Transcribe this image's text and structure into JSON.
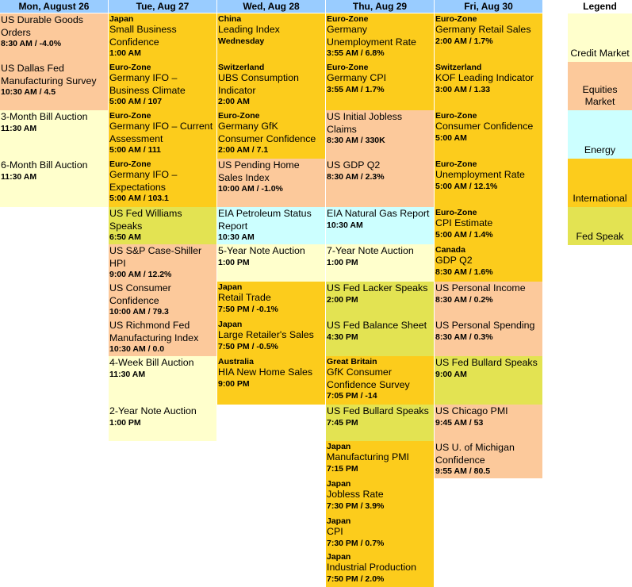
{
  "headers": {
    "mon": "Mon, August 26",
    "tue": "Tue, Aug 27",
    "wed": "Wed, Aug 28",
    "thu": "Thu, Aug 29",
    "fri": "Fri, Aug 30"
  },
  "legend": {
    "title": "Legend",
    "items": [
      {
        "label": "Credit Market",
        "color": "#ffffcc"
      },
      {
        "label": "Equities Market",
        "color": "#fcc99b"
      },
      {
        "label": "Energy",
        "color": "#ccffff"
      },
      {
        "label": "International",
        "color": "#fccc1c"
      },
      {
        "label": "Fed Speak",
        "color": "#e3e352"
      }
    ]
  },
  "mon": [
    {
      "region": "",
      "title": "US Durable Goods Orders",
      "detail": "8:30 AM / -4.0%",
      "category": "Equities Market"
    },
    {
      "region": "",
      "title": "US Dallas Fed Manufacturing Survey",
      "detail": "10:30 AM / 4.5",
      "category": "Equities Market"
    },
    {
      "region": "",
      "title": "3-Month Bill Auction",
      "detail": "11:30 AM",
      "category": "Credit Market"
    },
    {
      "region": "",
      "title": "6-Month Bill Auction",
      "detail": "11:30 AM",
      "category": "Credit Market"
    }
  ],
  "tue": [
    {
      "region": "Japan",
      "title": "Small Business Confidence",
      "detail": "1:00 AM",
      "category": "International"
    },
    {
      "region": "Euro-Zone",
      "title": "Germany IFO – Business Climate",
      "detail": "5:00 AM / 107",
      "category": "International"
    },
    {
      "region": "Euro-Zone",
      "title": "Germany IFO – Current Assessment",
      "detail": "5:00 AM / 111",
      "category": "International"
    },
    {
      "region": "Euro-Zone",
      "title": "Germany IFO – Expectations",
      "detail": "5:00 AM / 103.1",
      "category": "International"
    },
    {
      "region": "",
      "title": "US Fed Williams Speaks",
      "detail": "6:50 AM",
      "category": "Fed Speak"
    },
    {
      "region": "",
      "title": "US S&P Case-Shiller HPI",
      "detail": "9:00 AM / 12.2%",
      "category": "Equities Market"
    },
    {
      "region": "",
      "title": "US Consumer Confidence",
      "detail": "10:00 AM / 79.3",
      "category": "Equities Market"
    },
    {
      "region": "",
      "title": "US Richmond Fed Manufacturing Index",
      "detail": "10:30 AM / 0.0",
      "category": "Equities Market"
    },
    {
      "region": "",
      "title": "4-Week Bill Auction",
      "detail": "11:30 AM",
      "category": "Credit Market"
    },
    {
      "region": "",
      "title": "2-Year Note Auction",
      "detail": "1:00 PM",
      "category": "Credit Market"
    }
  ],
  "wed": [
    {
      "region": "China",
      "title": "Leading Index",
      "detail": "Wednesday",
      "category": "International"
    },
    {
      "region": "Switzerland",
      "title": "UBS Consumption Indicator",
      "detail": "2:00 AM",
      "category": "International"
    },
    {
      "region": "Euro-Zone",
      "title": "Germany GfK Consumer Confidence",
      "detail": "2:00 AM / 7.1",
      "category": "International"
    },
    {
      "region": "",
      "title": "US Pending Home Sales Index",
      "detail": "10:00 AM / -1.0%",
      "category": "Equities Market"
    },
    {
      "region": "",
      "title": "EIA Petroleum Status Report",
      "detail": "10:30 AM",
      "category": "Energy"
    },
    {
      "region": "",
      "title": "5-Year Note Auction",
      "detail": "1:00 PM",
      "category": "Credit Market"
    },
    {
      "region": "Japan",
      "title": "Retail Trade",
      "detail": "7:50 PM / -0.1%",
      "category": "International"
    },
    {
      "region": "Japan",
      "title": "Large Retailer's Sales",
      "detail": "7:50 PM / -0.5%",
      "category": "International"
    },
    {
      "region": "Australia",
      "title": "HIA New Home Sales",
      "detail": "9:00 PM",
      "category": "International"
    }
  ],
  "thu": [
    {
      "region": "Euro-Zone",
      "title": "Germany Unemployment Rate",
      "detail": "3:55 AM / 6.8%",
      "category": "International"
    },
    {
      "region": "Euro-Zone",
      "title": "Germany CPI",
      "detail": "3:55 AM / 1.7%",
      "category": "International"
    },
    {
      "region": "",
      "title": "US Initial Jobless Claims",
      "detail": "8:30 AM / 330K",
      "category": "Equities Market"
    },
    {
      "region": "",
      "title": "US GDP Q2",
      "detail": "8:30 AM / 2.3%",
      "category": "Equities Market"
    },
    {
      "region": "",
      "title": "EIA Natural Gas Report",
      "detail": "10:30 AM",
      "category": "Energy"
    },
    {
      "region": "",
      "title": "7-Year Note Auction",
      "detail": "1:00 PM",
      "category": "Credit Market"
    },
    {
      "region": "",
      "title": "US Fed Lacker Speaks",
      "detail": "2:00 PM",
      "category": "Fed Speak"
    },
    {
      "region": "",
      "title": "US Fed Balance Sheet",
      "detail": "4:30 PM",
      "category": "Fed Speak"
    },
    {
      "region": "Great Britain",
      "title": "GfK Consumer Confidence Survey",
      "detail": "7:05 PM / -14",
      "category": "International"
    },
    {
      "region": "",
      "title": "US Fed Bullard Speaks",
      "detail": "7:45 PM",
      "category": "Fed Speak"
    },
    {
      "region": "Japan",
      "title": "Manufacturing PMI",
      "detail": "7:15 PM",
      "category": "International"
    },
    {
      "region": "Japan",
      "title": "Jobless Rate",
      "detail": "7:30 PM / 3.9%",
      "category": "International"
    },
    {
      "region": "Japan",
      "title": "CPI",
      "detail": "7:30 PM / 0.7%",
      "category": "International"
    },
    {
      "region": "Japan",
      "title": "Industrial Production",
      "detail": "7:50 PM / 2.0%",
      "category": "International"
    }
  ],
  "fri": [
    {
      "region": "Euro-Zone",
      "title": "Germany Retail Sales",
      "detail": "2:00 AM / 1.7%",
      "category": "International"
    },
    {
      "region": "Switzerland",
      "title": "KOF Leading Indicator",
      "detail": "3:00 AM / 1.33",
      "category": "International"
    },
    {
      "region": "Euro-Zone",
      "title": "Consumer Confidence",
      "detail": "5:00 AM",
      "category": "International"
    },
    {
      "region": "Euro-Zone",
      "title": "Unemployment Rate",
      "detail": "5:00 AM / 12.1%",
      "category": "International"
    },
    {
      "region": "Euro-Zone",
      "title": "CPI Estimate",
      "detail": "5:00 AM / 1.4%",
      "category": "International"
    },
    {
      "region": "Canada",
      "title": "GDP Q2",
      "detail": "8:30 AM / 1.6%",
      "category": "International"
    },
    {
      "region": "",
      "title": "US Personal Income",
      "detail": "8:30 AM / 0.2%",
      "category": "Equities Market"
    },
    {
      "region": "",
      "title": "US Personal Spending",
      "detail": "8:30 AM / 0.3%",
      "category": "Equities Market"
    },
    {
      "region": "",
      "title": "US Fed Bullard Speaks",
      "detail": "9:00 AM",
      "category": "Fed Speak"
    },
    {
      "region": "",
      "title": "US Chicago PMI",
      "detail": "9:45 AM / 53",
      "category": "Equities Market"
    },
    {
      "region": "",
      "title": "US U. of Michigan Confidence",
      "detail": "9:55 AM / 80.5",
      "category": "Equities Market"
    }
  ]
}
